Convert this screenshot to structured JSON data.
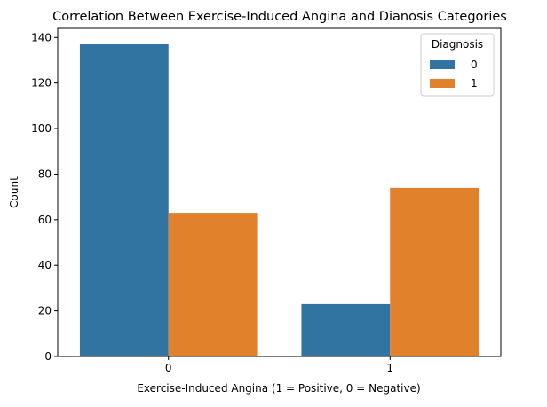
{
  "chart_data": {
    "type": "bar",
    "title": "Correlation Between Exercise-Induced Angina and Dianosis Categories",
    "xlabel": "Exercise-Induced Angina (1 = Positive, 0 = Negative)",
    "ylabel": "Count",
    "categories": [
      "0",
      "1"
    ],
    "series": [
      {
        "name": "0",
        "color": "#3274a1",
        "values": [
          137,
          23
        ]
      },
      {
        "name": "1",
        "color": "#e1812c",
        "values": [
          63,
          74
        ]
      }
    ],
    "ylim": [
      0,
      144
    ],
    "yticks": [
      0,
      20,
      40,
      60,
      80,
      100,
      120,
      140
    ],
    "grid": false,
    "legend": {
      "title": "Diagnosis",
      "placement": "top-right"
    }
  }
}
